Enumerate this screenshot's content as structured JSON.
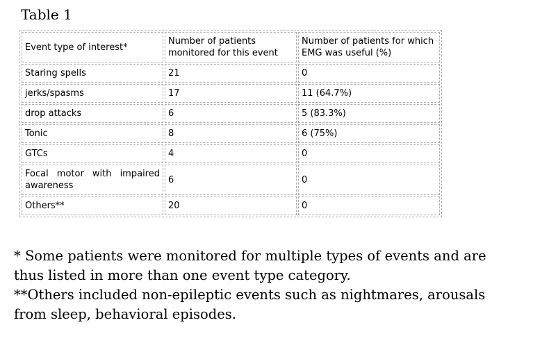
{
  "page": {
    "title": "Table 1"
  },
  "table": {
    "columns": [
      "Event type of interest*",
      "Number of patients monitored for this event",
      "Number of patients for which EMG was useful (%)"
    ],
    "rows": [
      [
        "Staring spells",
        "21",
        "0"
      ],
      [
        "jerks/spasms",
        "17",
        "11 (64.7%)"
      ],
      [
        "drop attacks",
        "6",
        "5 (83.3%)"
      ],
      [
        "Tonic",
        "8",
        "6 (75%)"
      ],
      [
        "GTCs",
        "4",
        "0"
      ],
      [
        "Focal motor with impaired awareness",
        "6",
        "0"
      ],
      [
        "Others**",
        "20",
        "0"
      ]
    ]
  },
  "footnotes": [
    "* Some patients were monitored for multiple types of events and are thus listed in more than one event type category.",
    "**Others included non-epileptic events such as nightmares, arousals from sleep, behavioral episodes."
  ],
  "colors": {
    "border": "#adadad",
    "text": "#000000",
    "background": "#ffffff"
  }
}
